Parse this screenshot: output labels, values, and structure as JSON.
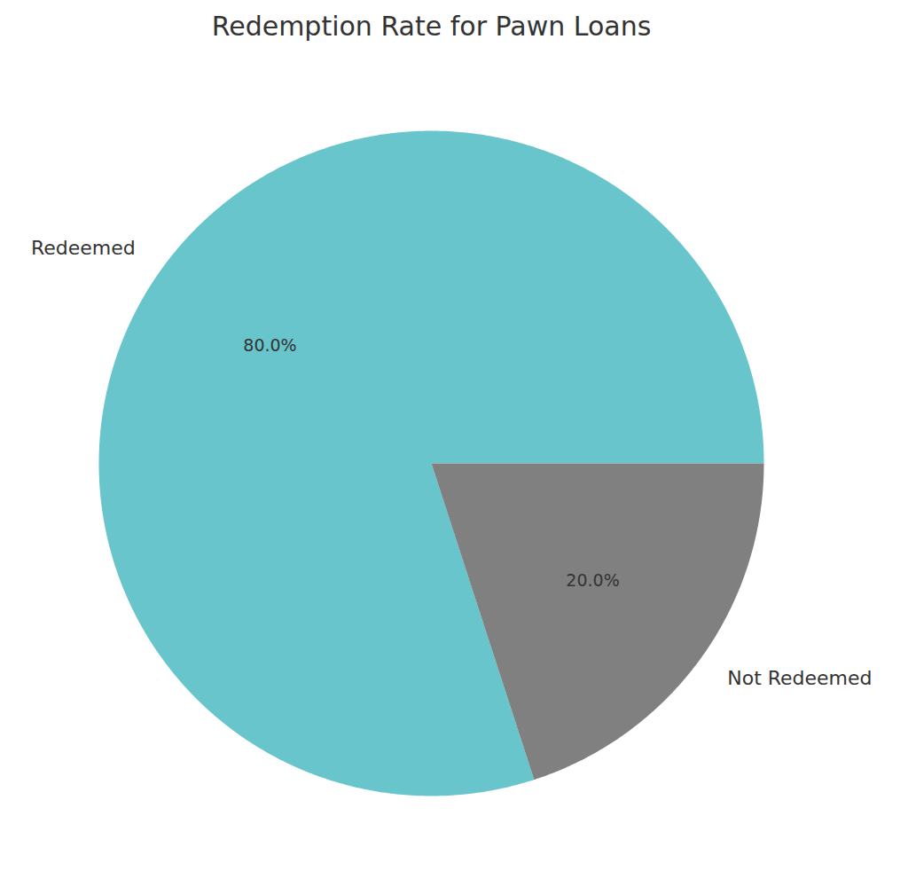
{
  "chart_data": {
    "type": "pie",
    "title": "Redemption Rate for Pawn Loans",
    "categories": [
      "Redeemed",
      "Not Redeemed"
    ],
    "values": [
      80,
      20
    ],
    "colors": [
      "#69c5cc",
      "#808080"
    ],
    "data_labels": true,
    "value_labels": [
      "80.0%",
      "20.0%"
    ]
  }
}
